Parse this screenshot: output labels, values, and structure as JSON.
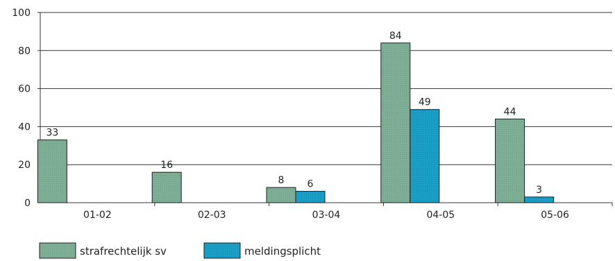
{
  "chart_data": {
    "type": "bar",
    "categories": [
      "01-02",
      "02-03",
      "03-04",
      "04-05",
      "05-06"
    ],
    "series": [
      {
        "name": "strafrechtelijk sv",
        "values": [
          33,
          16,
          8,
          84,
          44
        ],
        "labels": [
          "33",
          "16",
          "8",
          "84",
          "44"
        ],
        "color": "#7fae96"
      },
      {
        "name": "meldingsplicht",
        "values": [
          null,
          null,
          6,
          49,
          3
        ],
        "labels": [
          "",
          "",
          "6",
          "49",
          "3"
        ],
        "color": "#1a9ec6"
      }
    ],
    "ylim": [
      0,
      100
    ],
    "yticks": [
      0,
      20,
      40,
      60,
      80,
      100
    ],
    "ytick_labels": [
      "0",
      "20",
      "40",
      "60",
      "80",
      "100"
    ],
    "grid": true,
    "legend_position": "bottom-left",
    "title": "",
    "xlabel": "",
    "ylabel": ""
  }
}
